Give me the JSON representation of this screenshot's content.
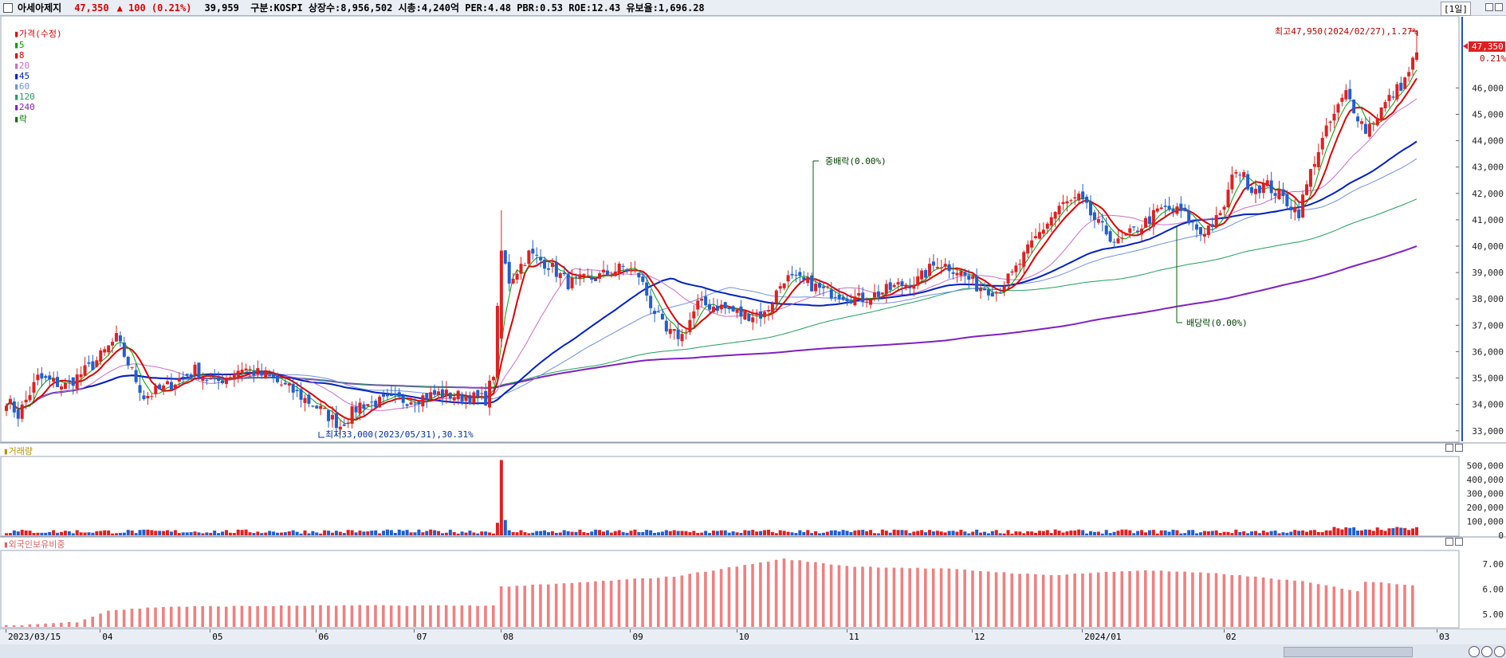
{
  "header": {
    "stock_name": "아세아제지",
    "price": "47,350",
    "change": "▲ 100 (0.21%)",
    "info": "39,959  구분:KOSPI 상장수:8,956,502 시총:4,240억 PER:4.48 PBR:0.53 ROE:12.43 유보율:1,696.28",
    "period": "[1일]"
  },
  "legends": {
    "price": [
      "가격(수정)",
      "5",
      "8",
      "20",
      "45",
      "60",
      "120",
      "240",
      "락"
    ],
    "volume": "거래량",
    "foreign": "외국인보유비중"
  },
  "colors": {
    "up": "#e02020",
    "down": "#1f5fd0",
    "ma5": "#00a000",
    "ma8": "#e00000",
    "ma20": "#c86ec8",
    "ma45": "#0020c0",
    "ma60": "#7090e0",
    "ma120": "#20a060",
    "ma240": "#8020c0",
    "foreign_bar": "#f08080"
  },
  "annotations": {
    "high": "최고47,950(2024/02/27),1.27%",
    "low": "최저33,000(2023/05/31),30.31%",
    "split": "중배락(0.00%)",
    "dividend": "배당락(0.00%)",
    "last_price": "47,350",
    "last_pct": "0.21%"
  },
  "chart_data": [
    {
      "type": "candlestick",
      "title": "가격(수정)",
      "y_ticks": [
        33000,
        34000,
        35000,
        36000,
        37000,
        38000,
        39000,
        40000,
        41000,
        42000,
        43000,
        44000,
        45000,
        46000
      ],
      "y_tick_labels": [
        "33,000",
        "34,000",
        "35,000",
        "36,000",
        "37,000",
        "38,000",
        "39,000",
        "40,000",
        "41,000",
        "42,000",
        "43,000",
        "44,000",
        "45,000",
        "46,000"
      ],
      "ylim": [
        32600,
        48700
      ],
      "x_labels": [
        "2023/03/15",
        "04",
        "05",
        "06",
        "07",
        "08",
        "09",
        "10",
        "11",
        "12",
        "2024/01",
        "02",
        "03"
      ],
      "close_anchors": [
        [
          0,
          34200
        ],
        [
          3,
          33600
        ],
        [
          8,
          35000
        ],
        [
          15,
          34700
        ],
        [
          22,
          35500
        ],
        [
          28,
          36500
        ],
        [
          35,
          34300
        ],
        [
          40,
          34600
        ],
        [
          48,
          35300
        ],
        [
          53,
          34800
        ],
        [
          60,
          35400
        ],
        [
          67,
          35000
        ],
        [
          73,
          34500
        ],
        [
          80,
          33800
        ],
        [
          85,
          33200
        ],
        [
          90,
          34000
        ],
        [
          96,
          34100
        ],
        [
          103,
          34200
        ],
        [
          110,
          34400
        ],
        [
          116,
          34300
        ],
        [
          122,
          34200
        ],
        [
          124,
          35200
        ],
        [
          126,
          39800
        ],
        [
          128,
          38700
        ],
        [
          133,
          39700
        ],
        [
          138,
          39300
        ],
        [
          143,
          38600
        ],
        [
          150,
          38800
        ],
        [
          157,
          39200
        ],
        [
          161,
          38900
        ],
        [
          164,
          37800
        ],
        [
          168,
          36700
        ],
        [
          172,
          36600
        ],
        [
          176,
          37800
        ],
        [
          182,
          37700
        ],
        [
          187,
          37400
        ],
        [
          193,
          37400
        ],
        [
          198,
          38800
        ],
        [
          204,
          38600
        ],
        [
          208,
          38300
        ],
        [
          212,
          38200
        ],
        [
          217,
          38000
        ],
        [
          222,
          38200
        ],
        [
          227,
          38500
        ],
        [
          232,
          38700
        ],
        [
          237,
          39400
        ],
        [
          242,
          39100
        ],
        [
          247,
          38500
        ],
        [
          252,
          38300
        ],
        [
          256,
          38900
        ],
        [
          262,
          40300
        ],
        [
          268,
          41500
        ],
        [
          273,
          41800
        ],
        [
          278,
          40800
        ],
        [
          283,
          40100
        ],
        [
          289,
          40800
        ],
        [
          294,
          41400
        ],
        [
          299,
          41300
        ],
        [
          304,
          40500
        ],
        [
          309,
          41100
        ],
        [
          313,
          43000
        ],
        [
          317,
          42200
        ],
        [
          321,
          42300
        ],
        [
          325,
          41800
        ],
        [
          329,
          41300
        ],
        [
          333,
          43300
        ],
        [
          337,
          44700
        ],
        [
          341,
          45800
        ],
        [
          346,
          44400
        ],
        [
          351,
          45400
        ],
        [
          356,
          46300
        ],
        [
          359,
          47350
        ]
      ]
    },
    {
      "type": "bar",
      "title": "거래량",
      "y_ticks": [
        0,
        100000,
        200000,
        300000,
        400000,
        500000
      ],
      "y_tick_labels": [
        "0",
        "100,000",
        "200,000",
        "300,000",
        "400,000",
        "500,000"
      ],
      "ylim": [
        0,
        560000
      ],
      "spike": {
        "index": 126,
        "value": 540000
      }
    },
    {
      "type": "bar",
      "title": "외국인보유비중",
      "y_ticks": [
        5.0,
        6.0,
        7.0
      ],
      "y_tick_labels": [
        "5.00",
        "6.00",
        "7.00"
      ],
      "ylim": [
        4.5,
        7.5
      ],
      "anchors": [
        [
          0,
          4.55
        ],
        [
          18,
          4.7
        ],
        [
          26,
          5.15
        ],
        [
          40,
          5.3
        ],
        [
          80,
          5.35
        ],
        [
          125,
          5.35
        ],
        [
          126,
          6.1
        ],
        [
          140,
          6.2
        ],
        [
          170,
          6.5
        ],
        [
          190,
          7.0
        ],
        [
          198,
          7.2
        ],
        [
          215,
          6.9
        ],
        [
          240,
          6.8
        ],
        [
          265,
          6.55
        ],
        [
          290,
          6.75
        ],
        [
          310,
          6.6
        ],
        [
          330,
          6.3
        ],
        [
          345,
          5.9
        ],
        [
          346,
          6.3
        ],
        [
          359,
          6.15
        ]
      ]
    }
  ]
}
